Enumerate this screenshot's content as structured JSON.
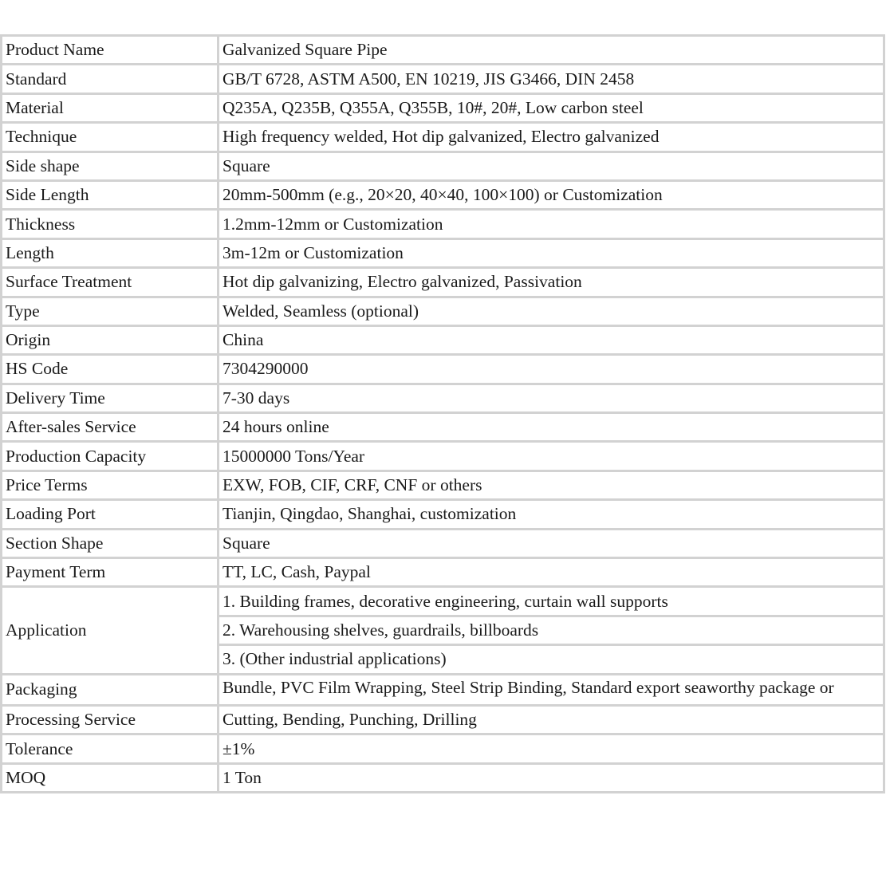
{
  "rows": [
    {
      "key": "Product Name",
      "value": "Galvanized Square Pipe"
    },
    {
      "key": "Standard",
      "value": "GB/T 6728, ASTM A500, EN 10219, JIS G3466, DIN 2458"
    },
    {
      "key": "Material",
      "value": "Q235A, Q235B, Q355A, Q355B, 10#, 20#, Low carbon steel"
    },
    {
      "key": "Technique",
      "value": "High frequency welded, Hot dip galvanized, Electro galvanized"
    },
    {
      "key": "Side shape",
      "value": "Square"
    },
    {
      "key": "Side Length",
      "value": "20mm-500mm (e.g., 20×20, 40×40, 100×100) or Customization"
    },
    {
      "key": "Thickness",
      "value": "1.2mm-12mm or Customization"
    },
    {
      "key": "Length",
      "value": "3m-12m or Customization"
    },
    {
      "key": "Surface Treatment",
      "value": "Hot dip galvanizing, Electro galvanized, Passivation"
    },
    {
      "key": "Type",
      "value": "Welded, Seamless (optional)"
    },
    {
      "key": "Origin",
      "value": "China"
    },
    {
      "key": "HS Code",
      "value": "7304290000"
    },
    {
      "key": "Delivery Time",
      "value": "7-30 days"
    },
    {
      "key": "After-sales Service",
      "value": "24 hours online"
    },
    {
      "key": "Production Capacity",
      "value": "15000000 Tons/Year"
    },
    {
      "key": "Price Terms",
      "value": "EXW, FOB, CIF, CRF, CNF or others"
    },
    {
      "key": "Loading Port",
      "value": "Tianjin, Qingdao, Shanghai, customization"
    },
    {
      "key": "Section Shape",
      "value": "Square"
    },
    {
      "key": "Payment Term",
      "value": "TT, LC, Cash, Paypal"
    }
  ],
  "application": {
    "key": "Application",
    "values": [
      "1. Building frames, decorative engineering, curtain wall supports",
      "2. Warehousing shelves, guardrails, billboards",
      "3. (Other industrial applications)"
    ]
  },
  "rows2": [
    {
      "key": "Packaging",
      "value": "Bundle, PVC Film Wrapping, Steel Strip Binding, Standard export seaworthy package or"
    },
    {
      "key": "Processing Service",
      "value": "Cutting, Bending, Punching, Drilling"
    },
    {
      "key": "Tolerance",
      "value": "±1%"
    },
    {
      "key": "MOQ",
      "value": "1 Ton"
    }
  ]
}
